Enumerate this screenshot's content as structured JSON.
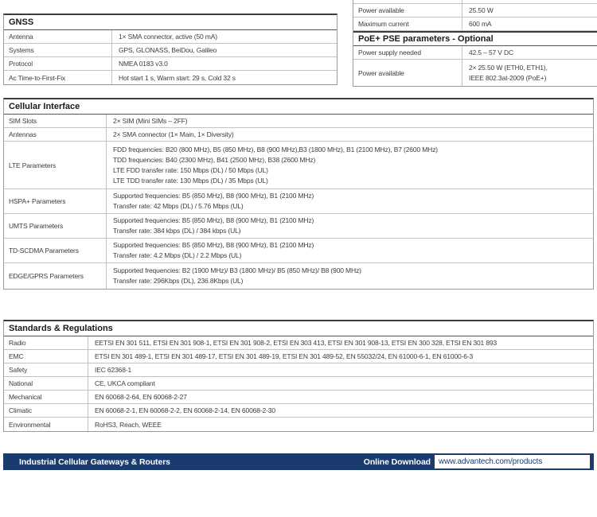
{
  "colors": {
    "navy": "#1b3a6e",
    "table_border_dark": "#3c3c3c",
    "table_border_light": "#c3c3c3"
  },
  "tables": {
    "gnss": {
      "title": "GNSS",
      "rows": [
        {
          "label": "Antenna",
          "value": "1× SMA connector, active (50 mA)"
        },
        {
          "label": "Systems",
          "value": "GPS, GLONASS, BeiDou, Galileo"
        },
        {
          "label": "Protocol",
          "value": "NMEA 0183 v3.0"
        },
        {
          "label": "Ac Time-to-First-Fix",
          "value": "Hot start 1 s, Warm start: 29 s, Cold 32 s"
        }
      ]
    },
    "power": {
      "rows_top": [
        {
          "label": "Power available",
          "value": "25.50 W"
        },
        {
          "label": "Maximum current",
          "value": "600 mA"
        }
      ],
      "poe_title": "PoE+ PSE parameters - Optional",
      "rows_poe": [
        {
          "label": "Power supply needed",
          "value": "42.5 – 57 V DC"
        },
        {
          "label": "Power available",
          "lines": [
            "2× 25.50 W (ETH0, ETH1),",
            "IEEE 802.3at-2009 (PoE+)"
          ]
        }
      ]
    },
    "cellular": {
      "title": "Cellular Interface",
      "rows": [
        {
          "label": "SIM Slots",
          "value": "2× SIM (Mini SIMs – 2FF)"
        },
        {
          "label": "Antennas",
          "value": "2× SMA connector (1× Main, 1× Diversity)"
        },
        {
          "label": "LTE Parameters",
          "lines": [
            "FDD frequencies: B20 (800 MHz), B5 (850 MHz), B8 (900 MHz),B3 (1800 MHz), B1 (2100 MHz), B7 (2600 MHz)",
            "TDD frequencies: B40 (2300 MHz), B41 (2500 MHz), B38 (2600 MHz)",
            "LTE FDD transfer rate: 150 Mbps (DL) / 50 Mbps (UL)",
            "LTE TDD transfer rate: 130 Mbps (DL) / 35 Mbps (UL)"
          ]
        },
        {
          "label": "HSPA+ Parameters",
          "lines": [
            "Supported frequencies: B5 (850 MHz), B8 (900 MHz), B1 (2100 MHz)",
            "Transfer rate: 42 Mbps (DL) / 5.76 Mbps (UL)"
          ]
        },
        {
          "label": "UMTS Parameters",
          "lines": [
            "Supported frequencies: B5 (850 MHz), B8 (900 MHz), B1 (2100 MHz)",
            "Transfer rate: 384 kbps (DL) / 384 kbps (UL)"
          ]
        },
        {
          "label": "TD-SCDMA Parameters",
          "lines": [
            "Supported frequencies: B5 (850 MHz), B8 (900 MHz), B1 (2100 MHz)",
            "Transfer rate: 4.2 Mbps (DL) / 2.2 Mbps (UL)"
          ]
        },
        {
          "label": "EDGE/GPRS Parameters",
          "lines": [
            "Supported frequencies: B2 (1900 MHz)/ B3 (1800 MHz)/ B5 (850 MHz)/ B8 (900 MHz)",
            "Transfer rate: 296Kbps (DL), 236.8Kbps (UL)"
          ]
        }
      ]
    },
    "standards": {
      "title": "Standards & Regulations",
      "rows": [
        {
          "label": "Radio",
          "value": "EETSI EN 301 511, ETSI EN 301 908-1, ETSI EN 301 908-2, ETSI EN 303 413, ETSI EN 301 908-13, ETSI EN 300 328, ETSI EN 301 893"
        },
        {
          "label": "EMC",
          "value": "ETSI EN 301 489-1, ETSI EN 301 489-17, ETSI EN 301 489-19, ETSI EN 301 489-52, EN 55032/24, EN 61000-6-1, EN 61000-6-3"
        },
        {
          "label": "Safety",
          "value": "IEC 62368-1"
        },
        {
          "label": "National",
          "value": "CE, UKCA compliant"
        },
        {
          "label": "Mechanical",
          "value": "EN 60068-2-64, EN 60068-2-27"
        },
        {
          "label": "Climatic",
          "value": "EN 60068-2-1, EN 60068-2-2, EN 60068-2-14, EN 60068-2-30"
        },
        {
          "label": "Environmental",
          "value": "RoHS3, Reach, WEEE"
        }
      ]
    }
  },
  "footer": {
    "product_line": "Industrial Cellular Gateways & Routers",
    "download_label": "Online Download",
    "download_url": "www.advantech.com/products"
  }
}
